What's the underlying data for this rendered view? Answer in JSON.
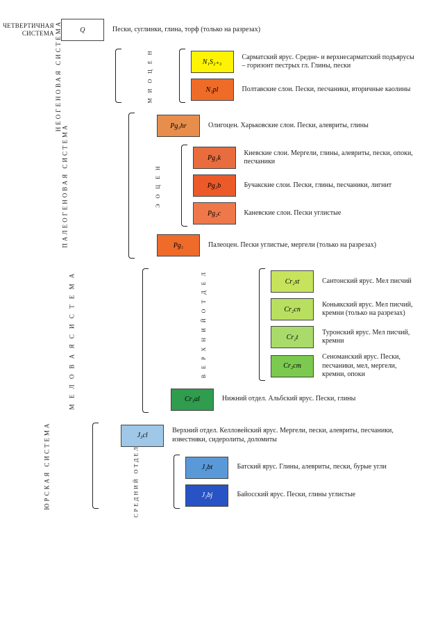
{
  "background_color": "#ffffff",
  "text_color": "#222222",
  "border_color": "#444444",
  "font_family": "Times New Roman",
  "font_size_desc": 10,
  "font_size_system": 9,
  "font_size_sub": 8,
  "swatch_width": 60,
  "swatch_height": 30,
  "quaternary": {
    "system_label": "ЧЕТВЕРТИЧНАЯ СИСТЕМА",
    "code": "Q",
    "fill": "#ffffff",
    "code_color": "#000000",
    "desc": "Пески, суглинки, глина, торф (только на разрезах)"
  },
  "neogene": {
    "system_label": "НЕОГЕНОВАЯ СИСТЕМА",
    "sub_label": "М И О Ц Е Н",
    "items": [
      {
        "code": "N₁S₂₊₃",
        "fill": "#fef303",
        "code_color": "#000000",
        "desc": "Сарматский ярус. Средне- и верхнесарматский подъярусы – горизонт пестрых гл. Глины, пески"
      },
      {
        "code": "N₁pl",
        "fill": "#ef6b28",
        "code_color": "#000000",
        "desc": "Полтавские слои. Пески, песчаники, вторичные каолины"
      }
    ]
  },
  "paleogene": {
    "system_label": "ПАЛЕОГЕНОВАЯ СИСТЕМА",
    "sub_label": "Э  О  Ц  Е  Н",
    "top": {
      "code": "Pg₃hr",
      "fill": "#e88e4d",
      "code_color": "#000000",
      "desc": "Олигоцен. Харьковские слои. Пески, алевриты, глины"
    },
    "eocene": [
      {
        "code": "Pg₂k",
        "fill": "#e86c3e",
        "code_color": "#000000",
        "desc": "Киевские слои. Мергели, глины, алевриты, пески, опоки, песчаники"
      },
      {
        "code": "Pg₂b",
        "fill": "#ec5a2a",
        "code_color": "#000000",
        "desc": "Бучакские слои. Пески, глины, песчаники, лигнит"
      },
      {
        "code": "Pg₂c",
        "fill": "#ef784a",
        "code_color": "#000000",
        "desc": "Каневские слои. Пески углистые"
      }
    ],
    "bottom": {
      "code": "Pg₁",
      "fill": "#ef6b2a",
      "code_color": "#000000",
      "desc": "Палеоцен. Пески углистые, мергели (только на разрезах)"
    }
  },
  "cretaceous": {
    "system_label": "М Е Л О В А Я   С И С Т Е М А",
    "sub_label": "В Е Р Х Н И Й   О Т Д Е Л",
    "upper": [
      {
        "code": "Cr₂st",
        "fill": "#c6e35b",
        "code_color": "#000000",
        "desc": "Сантонский ярус. Мел писчий"
      },
      {
        "code": "Cr₂cn",
        "fill": "#b8df60",
        "code_color": "#000000",
        "desc": "Коньякский ярус. Мел писчий, кремни (только на разрезах)"
      },
      {
        "code": "Cr₂t",
        "fill": "#a9db6a",
        "code_color": "#000000",
        "desc": "Туронский ярус. Мел писчий, кремни"
      },
      {
        "code": "Cr₂cm",
        "fill": "#7cc94f",
        "code_color": "#000000",
        "desc": "Сеноманский ярус. Пески, песчаники, мел, мергели, кремни, опоки"
      }
    ],
    "lower": {
      "code": "Cr₁al",
      "fill": "#2f9c4e",
      "code_color": "#000000",
      "desc": "Нижний отдел. Альбский ярус. Пески, глины"
    }
  },
  "jurassic": {
    "system_label": "ЮРСКАЯ СИСТЕМА",
    "sub_label": "СРЕДНИЙ ОТДЕЛ",
    "top": {
      "code": "J₃cl",
      "fill": "#9ec7e8",
      "code_color": "#000000",
      "desc": "Верхний отдел. Келловейский ярус. Мергели, пески, алевриты, песчаники, известняки, сидеролиты, доломиты"
    },
    "middle": [
      {
        "code": "J₂bt",
        "fill": "#5a99d8",
        "code_color": "#000000",
        "desc": "Батский ярус. Глины, алевриты, пески, бурые угли"
      },
      {
        "code": "J₂bj",
        "fill": "#2753c4",
        "code_color": "#ffffff",
        "desc": "Байосский ярус. Пески, глины углистые"
      }
    ]
  }
}
